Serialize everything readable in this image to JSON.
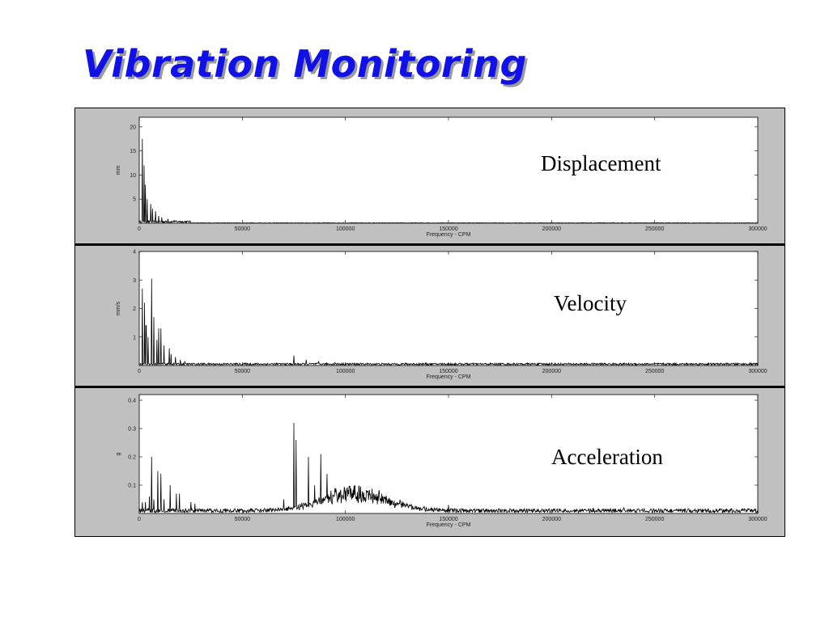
{
  "slide": {
    "title": "Vibration Monitoring"
  },
  "chart_data": [
    {
      "type": "line",
      "annotation": "Displacement",
      "xlabel": "Frequency - CPM",
      "ylabel": "mm",
      "xlim": [
        0,
        300000
      ],
      "ylim": [
        0,
        22
      ],
      "xticks": [
        0,
        50000,
        100000,
        150000,
        200000,
        250000,
        300000
      ],
      "xtick_labels": [
        "0",
        "50000",
        "100000",
        "150000",
        "200000",
        "250000",
        "300000"
      ],
      "yticks": [
        5,
        10,
        15,
        20
      ],
      "ytick_labels": [
        "5",
        "10",
        "15",
        "20"
      ],
      "grid": false,
      "series": [
        {
          "peaks": [
            [
              1500,
              17.5
            ],
            [
              2300,
              12
            ],
            [
              3000,
              8
            ],
            [
              3800,
              5
            ],
            [
              5500,
              4
            ],
            [
              6500,
              3
            ],
            [
              8000,
              2.5
            ],
            [
              9500,
              1.5
            ],
            [
              11000,
              1.2
            ],
            [
              14000,
              0.9
            ],
            [
              17000,
              0.6
            ],
            [
              20000,
              0.4
            ]
          ],
          "floor": 0.3,
          "floor_end": 25000
        }
      ]
    },
    {
      "type": "line",
      "annotation": "Velocity",
      "xlabel": "Frequency - CPM",
      "ylabel": "mm/s",
      "xlim": [
        0,
        300000
      ],
      "ylim": [
        0,
        4
      ],
      "xticks": [
        0,
        50000,
        100000,
        150000,
        200000,
        250000,
        300000
      ],
      "xtick_labels": [
        "0",
        "50000",
        "100000",
        "150000",
        "200000",
        "250000",
        "300000"
      ],
      "yticks": [
        1,
        2,
        3,
        4
      ],
      "ytick_labels": [
        "1",
        "2",
        "3",
        "4"
      ],
      "grid": false,
      "series": [
        {
          "peaks": [
            [
              1500,
              2.7
            ],
            [
              2500,
              2.2
            ],
            [
              3300,
              1.4
            ],
            [
              4200,
              1.0
            ],
            [
              6000,
              3.05
            ],
            [
              7000,
              1.7
            ],
            [
              8500,
              0.9
            ],
            [
              9500,
              1.3
            ],
            [
              10500,
              1.3
            ],
            [
              12000,
              0.7
            ],
            [
              14500,
              0.6
            ],
            [
              15500,
              0.4
            ],
            [
              17500,
              0.3
            ],
            [
              20000,
              0.2
            ],
            [
              22000,
              0.15
            ],
            [
              75000,
              0.35
            ],
            [
              81000,
              0.2
            ],
            [
              87000,
              0.15
            ],
            [
              95000,
              0.1
            ]
          ],
          "floor": 0.05,
          "floor_end": 300000
        }
      ]
    },
    {
      "type": "line",
      "annotation": "Acceleration",
      "xlabel": "Frequency - CPM",
      "ylabel": "g",
      "xlim": [
        0,
        300000
      ],
      "ylim": [
        0,
        0.42
      ],
      "xticks": [
        0,
        50000,
        100000,
        150000,
        200000,
        250000,
        300000
      ],
      "xtick_labels": [
        "0",
        "50000",
        "100000",
        "150000",
        "200000",
        "250000",
        "300000"
      ],
      "yticks": [
        0.1,
        0.2,
        0.3,
        0.4
      ],
      "ytick_labels": [
        "0.1",
        "0.2",
        "0.3",
        "0.4"
      ],
      "grid": false,
      "series": [
        {
          "peaks": [
            [
              1500,
              0.04
            ],
            [
              3000,
              0.04
            ],
            [
              5000,
              0.06
            ],
            [
              6000,
              0.2
            ],
            [
              7000,
              0.05
            ],
            [
              9000,
              0.15
            ],
            [
              10500,
              0.14
            ],
            [
              12000,
              0.05
            ],
            [
              15000,
              0.1
            ],
            [
              18000,
              0.07
            ],
            [
              19500,
              0.07
            ],
            [
              25000,
              0.04
            ],
            [
              27000,
              0.035
            ],
            [
              70000,
              0.05
            ],
            [
              75000,
              0.32
            ],
            [
              76000,
              0.26
            ],
            [
              82000,
              0.2
            ],
            [
              85000,
              0.1
            ],
            [
              88000,
              0.21
            ],
            [
              91000,
              0.14
            ],
            [
              95000,
              0.09
            ],
            [
              112000,
              0.07
            ],
            [
              150000,
              0.03
            ],
            [
              220000,
              0.02
            ],
            [
              235000,
              0.02
            ]
          ],
          "floor": 0.01,
          "floor_end": 300000,
          "hump": {
            "center": 105000,
            "width": 22000,
            "height": 0.06
          }
        }
      ]
    }
  ]
}
